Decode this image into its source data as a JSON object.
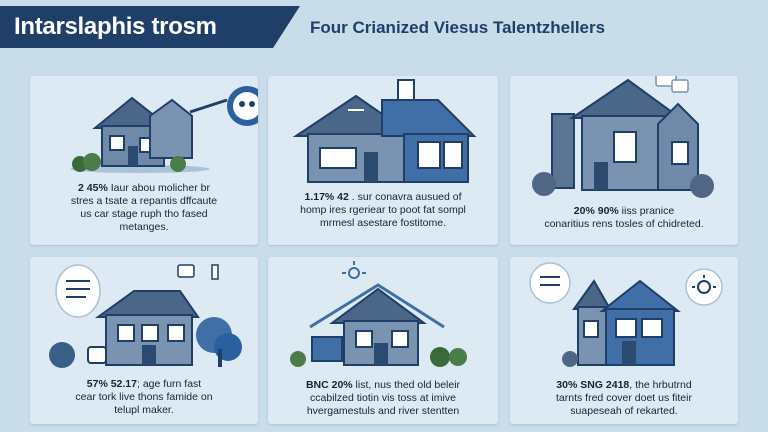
{
  "header": {
    "title": "Intarslaphis trosm",
    "subtitle": "Four Crianized Viesus Talentzhellers"
  },
  "cards": [
    {
      "stat": "2 45%",
      "lines": [
        "2 45% Iaur abou molicher br",
        "stres a tsate a repantis dffcaute",
        "us car stage ruph tho fased",
        "metanges."
      ]
    },
    {
      "stat": "1.17% 42",
      "lines": [
        "1.17% 42 . sur conavra ausued of",
        "homp ires rgeriear to poot fat sompl",
        "mrmesl asestare fostitome."
      ]
    },
    {
      "stat": "20% 90%",
      "lines": [
        "20% 90% iiss pranice",
        "conaritius rens tosles of chidreted."
      ]
    },
    {
      "stat": "57% 52.17",
      "lines": [
        "57% 52.17; age furn fast",
        "cear tork live thons famide on",
        "telupl maker."
      ]
    },
    {
      "stat": "BNC 20%",
      "lines": [
        "BNC 20% list, nus thed old beleir",
        "ccabilzed tiotin vis toss at imive",
        "hvergamestuls and river stentten"
      ]
    },
    {
      "stat": "30% SNG 2418",
      "lines": [
        "30% SNG 2418, the hrbutrnd",
        "tarnts fred cover doet us fiteir",
        "suapeseah of rekarted."
      ]
    }
  ],
  "colors": {
    "background": "#c9dcea",
    "card": "#dde9f3",
    "navy": "#1f3f68",
    "blue": "#3f6fa6",
    "slate": "#5c7594",
    "green": "#3a6a3a"
  },
  "icons": [
    "house-icon",
    "chat-bubble-icon",
    "sun-icon",
    "tree-icon",
    "bush-icon",
    "tape-icon"
  ]
}
